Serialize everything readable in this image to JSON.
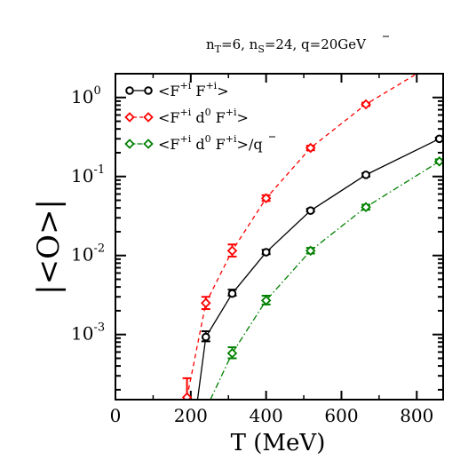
{
  "chart_data": {
    "type": "scatter",
    "title": {
      "pre": "n",
      "sub1": "T",
      "mid1": "=6, n",
      "sub2": "S",
      "mid2": "=24, q",
      "post": "=20GeV"
    },
    "xlabel": "T (MeV)",
    "ylabel": "|<O>|",
    "xlim": [
      0,
      870
    ],
    "ylim": [
      0.00015,
      2.0
    ],
    "y_scale": "log",
    "x_ticks": [
      0,
      200,
      400,
      600,
      800
    ],
    "x_tick_labels": [
      "0",
      "200",
      "400",
      "600",
      "800"
    ],
    "y_ticks": [
      0.001,
      0.01,
      0.1,
      1
    ],
    "y_tick_labels": [
      {
        "base": "10",
        "exp": "-3"
      },
      {
        "base": "10",
        "exp": "-2"
      },
      {
        "base": "10",
        "exp": "-1"
      },
      {
        "base": "10",
        "exp": "0"
      }
    ],
    "grid": false,
    "legend_position": "top-left",
    "series": [
      {
        "name": "<F+i F+i>",
        "legend": {
          "a": "<F",
          "a_sup": "+i",
          "b": " F",
          "b_sup": "+i",
          "c": ">"
        },
        "color": "#000000",
        "marker": "circle",
        "line": "solid",
        "x": [
          240,
          310,
          400,
          518,
          665,
          860
        ],
        "y": [
          0.00093,
          0.0033,
          0.011,
          0.037,
          0.105,
          0.3
        ],
        "err_hi": [
          0.0011,
          0.0037,
          0.0118,
          0.039,
          0.11,
          0.31
        ],
        "err_lo": [
          0.00082,
          0.0031,
          0.0104,
          0.036,
          0.1,
          0.29
        ],
        "curve_x": [
          218,
          240,
          310,
          400,
          518,
          665,
          860
        ],
        "curve_y": [
          0.00015,
          0.00093,
          0.0033,
          0.011,
          0.037,
          0.105,
          0.3
        ]
      },
      {
        "name": "<F+i d0 F+i>",
        "legend": {
          "a": "<F",
          "a_sup": "+i",
          "b": " d",
          "b_sup": "0",
          "c": " F",
          "c_sup": "+i",
          "d": ">"
        },
        "color": "#ff0000",
        "marker": "diamond",
        "line": "dashed",
        "x": [
          190,
          240,
          310,
          400,
          518,
          665
        ],
        "y": [
          0.00016,
          0.0025,
          0.0115,
          0.053,
          0.23,
          0.82
        ],
        "err_hi": [
          0.00028,
          0.003,
          0.0138,
          0.058,
          0.245,
          0.86
        ],
        "err_lo": [
          0.00015,
          0.0021,
          0.0097,
          0.049,
          0.215,
          0.78
        ],
        "curve_x": [
          190,
          240,
          310,
          400,
          518,
          665,
          800
        ],
        "curve_y": [
          0.00016,
          0.0025,
          0.0115,
          0.053,
          0.23,
          0.82,
          2.0
        ]
      },
      {
        "name": "<F+i d0 F+i>/q",
        "legend": {
          "a": "<F",
          "a_sup": "+i",
          "b": " d",
          "b_sup": "0",
          "c": " F",
          "c_sup": "+i",
          "d": ">/q"
        },
        "color": "#008000",
        "marker": "diamond",
        "line": "dashdot",
        "x": [
          310,
          400,
          518,
          665,
          860
        ],
        "y": [
          0.00058,
          0.0027,
          0.0115,
          0.041,
          0.155
        ],
        "err_hi": [
          0.00069,
          0.0031,
          0.0125,
          0.044,
          0.165
        ],
        "err_lo": [
          0.0005,
          0.0024,
          0.0106,
          0.038,
          0.147
        ],
        "curve_x": [
          252,
          310,
          400,
          518,
          665,
          860
        ],
        "curve_y": [
          0.00015,
          0.00058,
          0.0027,
          0.0115,
          0.041,
          0.155
        ]
      }
    ]
  }
}
